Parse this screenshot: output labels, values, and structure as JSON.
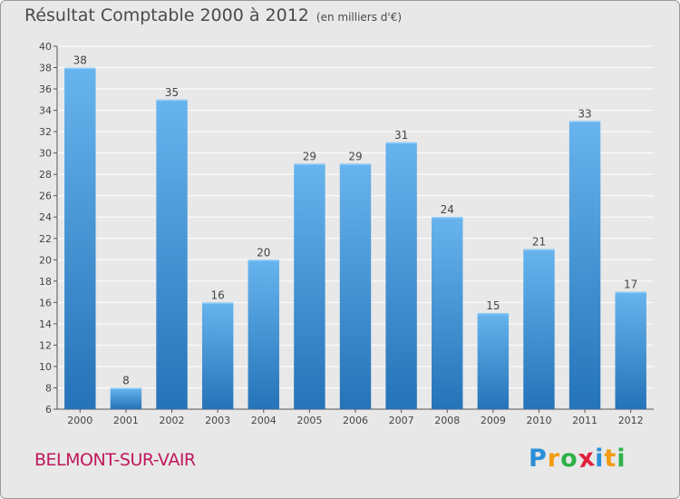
{
  "title": "Résultat Comptable 2000 à 2012",
  "unit": "(en milliers d'€)",
  "commune": "BELMONT-SUR-VAIR",
  "logo": {
    "letters": [
      "P",
      "r",
      "o",
      "x",
      "i",
      "t",
      "i"
    ],
    "colors": [
      "#2a8fd6",
      "#f39c12",
      "#2fb24a",
      "#e0203c",
      "#2a8fd6",
      "#f39c12",
      "#2fb24a"
    ]
  },
  "colors": {
    "bar": "#3d8fd6",
    "bar_light": "#67b4ee",
    "bar_dark": "#2573b8",
    "grid": "#ffffff",
    "text": "#444444"
  },
  "chart_data": {
    "type": "bar",
    "title": "Résultat Comptable 2000 à 2012",
    "subtitle": "(en milliers d'€)",
    "categories": [
      "2000",
      "2001",
      "2002",
      "2003",
      "2004",
      "2005",
      "2006",
      "2007",
      "2008",
      "2009",
      "2010",
      "2011",
      "2012"
    ],
    "values": [
      38,
      8,
      35,
      16,
      20,
      29,
      29,
      31,
      24,
      15,
      21,
      33,
      17
    ],
    "ylim": [
      6,
      40
    ],
    "yticks": [
      6,
      8,
      10,
      12,
      14,
      16,
      18,
      20,
      22,
      24,
      26,
      28,
      30,
      32,
      34,
      36,
      38,
      40
    ],
    "grid": true,
    "data_labels": true
  }
}
